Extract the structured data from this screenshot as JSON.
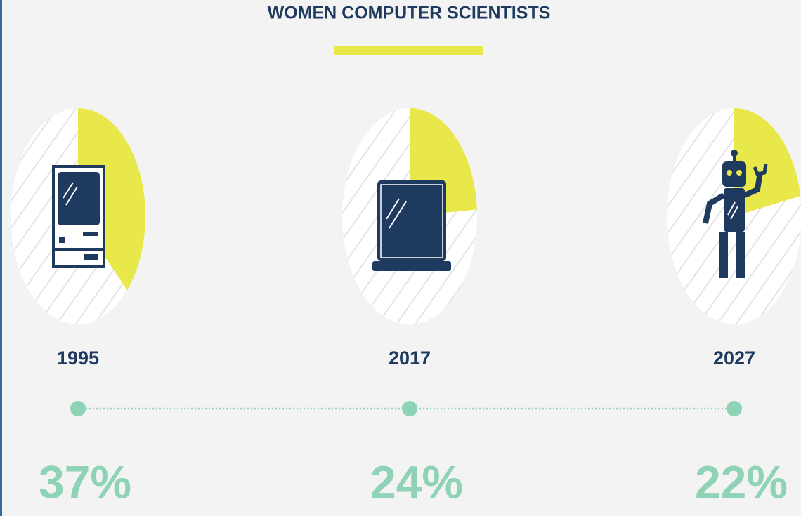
{
  "chart_data": {
    "type": "pie",
    "title": "WOMEN COMPUTER SCIENTISTS",
    "categories": [
      "1995",
      "2017",
      "2027"
    ],
    "values": [
      37,
      24,
      22
    ],
    "value_labels": [
      "37%",
      "24%",
      "22%"
    ],
    "color": "#e8e84a"
  }
}
